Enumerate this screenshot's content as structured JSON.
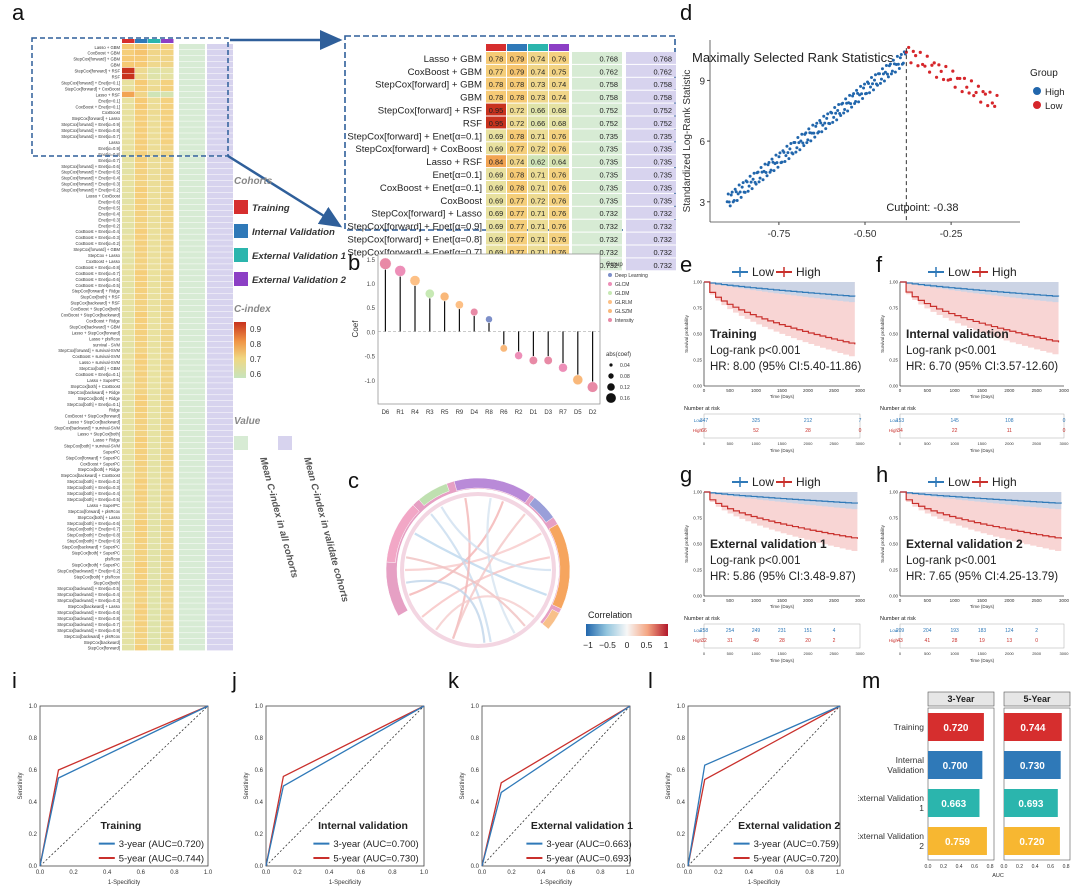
{
  "chart_data": [
    {
      "panel": "a",
      "type": "heatmap",
      "column_colors": [
        "#d62e2e",
        "#2f79b8",
        "#2bb5ad",
        "#8c3fc5"
      ],
      "zoom_rows": [
        {
          "model": "Lasso + GBM",
          "values": [
            0.78,
            0.79,
            0.74,
            0.76
          ],
          "mean_all": 0.768,
          "mean_val": 0.768
        },
        {
          "model": "CoxBoost + GBM",
          "values": [
            0.77,
            0.79,
            0.74,
            0.75
          ],
          "mean_all": 0.762,
          "mean_val": 0.762
        },
        {
          "model": "StepCox[forward] + GBM",
          "values": [
            0.78,
            0.78,
            0.73,
            0.74
          ],
          "mean_all": 0.758,
          "mean_val": 0.758
        },
        {
          "model": "GBM",
          "values": [
            0.78,
            0.78,
            0.73,
            0.74
          ],
          "mean_all": 0.758,
          "mean_val": 0.758
        },
        {
          "model": "StepCox[forward] + RSF",
          "values": [
            0.95,
            0.72,
            0.66,
            0.68
          ],
          "mean_all": 0.752,
          "mean_val": 0.752
        },
        {
          "model": "RSF",
          "values": [
            0.95,
            0.72,
            0.66,
            0.68
          ],
          "mean_all": 0.752,
          "mean_val": 0.752
        },
        {
          "model": "StepCox[forward] + Enet[α=0.1]",
          "values": [
            0.69,
            0.78,
            0.71,
            0.76
          ],
          "mean_all": 0.735,
          "mean_val": 0.735
        },
        {
          "model": "StepCox[forward] + CoxBoost",
          "values": [
            0.69,
            0.77,
            0.72,
            0.76
          ],
          "mean_all": 0.735,
          "mean_val": 0.735
        },
        {
          "model": "Lasso + RSF",
          "values": [
            0.84,
            0.74,
            0.62,
            0.64
          ],
          "mean_all": 0.735,
          "mean_val": 0.735
        },
        {
          "model": "Enet[α=0.1]",
          "values": [
            0.69,
            0.78,
            0.71,
            0.76
          ],
          "mean_all": 0.735,
          "mean_val": 0.735
        },
        {
          "model": "CoxBoost + Enet[α=0.1]",
          "values": [
            0.69,
            0.78,
            0.71,
            0.76
          ],
          "mean_all": 0.735,
          "mean_val": 0.735
        },
        {
          "model": "CoxBoost",
          "values": [
            0.69,
            0.77,
            0.72,
            0.76
          ],
          "mean_all": 0.735,
          "mean_val": 0.735
        },
        {
          "model": "StepCox[forward] + Lasso",
          "values": [
            0.69,
            0.77,
            0.71,
            0.76
          ],
          "mean_all": 0.732,
          "mean_val": 0.732
        },
        {
          "model": "StepCox[forward] + Enet[α=0.9]",
          "values": [
            0.69,
            0.77,
            0.71,
            0.76
          ],
          "mean_all": 0.732,
          "mean_val": 0.732
        },
        {
          "model": "StepCox[forward] + Enet[α=0.8]",
          "values": [
            0.69,
            0.77,
            0.71,
            0.76
          ],
          "mean_all": 0.732,
          "mean_val": 0.732
        },
        {
          "model": "StepCox[forward] + Enet[α=0.7]",
          "values": [
            0.69,
            0.77,
            0.71,
            0.76
          ],
          "mean_all": 0.732,
          "mean_val": 0.732
        },
        {
          "model": "Lasso",
          "values": [
            0.69,
            0.77,
            0.71,
            0.76
          ],
          "mean_all": 0.732,
          "mean_val": 0.732
        }
      ],
      "small_rows": [
        "Enet[α=0.9]",
        "Enet[α=0.8]",
        "Enet[α=0.7]",
        "StepCox[forward] + Enet[α=0.6]",
        "StepCox[forward] + Enet[α=0.5]",
        "StepCox[forward] + Enet[α=0.4]",
        "StepCox[forward] + Enet[α=0.3]",
        "StepCox[forward] + Enet[α=0.2]",
        "Lasso + CoxBoost",
        "Enet[α=0.6]",
        "Enet[α=0.5]",
        "Enet[α=0.4]",
        "Enet[α=0.3]",
        "Enet[α=0.2]",
        "CoxBoost + Enet[α=0.4]",
        "CoxBoost + Enet[α=0.3]",
        "CoxBoost + Enet[α=0.2]",
        "StepCox[forward] + GBM",
        "StepCox + Lasso",
        "CoxBoost + Lasso",
        "CoxBoost + Enet[α=0.8]",
        "CoxBoost + Enet[α=0.7]",
        "CoxBoost + Enet[α=0.6]",
        "CoxBoost + Enet[α=0.5]",
        "StepCox[forward] + Ridge",
        "StepCox[both] + RSF",
        "StepCox[backward] + RSF",
        "CoxBoost + StepCox[both]",
        "CoxBoost + StepCox[backward]",
        "CoxBoost + Ridge",
        "StepCox[backward] + GBM",
        "Lasso + StepCox[forward]",
        "Lasso + plsRcox",
        "survival - SVM",
        "StepCox[forward] + survival-SVM",
        "CoxBoost + survival-SVM",
        "Lasso + survival-SVM",
        "StepCox[both] + GBM",
        "CoxBoost + Enet[α=0.1]",
        "Lasso + SuperPC",
        "StepCox[both] + CoxBoost",
        "StepCox[backward] + Ridge",
        "StepCox[both] + Ridge",
        "StepCox[both] + Enet[α=0.1]",
        "Ridge",
        "CoxBoost + StepCox[forward]",
        "Lasso + StepCox[backward]",
        "StepCox[backward] + survival-SVM",
        "Lasso + StepCox[both]",
        "Lasso + Ridge",
        "StepCox[both] + survival-SVM",
        "SuperPC",
        "StepCox[forward] + SuperPC",
        "CoxBoost + SuperPC",
        "StepCox[both] + Ridge",
        "StepCox[backward] + CoxBoost",
        "StepCox[both] + Enet[α=0.2]",
        "StepCox[both] + Enet[α=0.3]",
        "StepCox[both] + Enet[α=0.4]",
        "StepCox[both] + Enet[α=0.5]",
        "Lasso + SuperPC",
        "StepCox[forward] + plsRcox",
        "StepCox[both] + Lasso",
        "StepCox[both] + Enet[α=0.6]",
        "StepCox[both] + Enet[α=0.7]",
        "StepCox[both] + Enet[α=0.8]",
        "StepCox[both] + Enet[α=0.9]",
        "StepCox[backward] + SuperPC",
        "StepCox[both] + SuperPC",
        "plsRcox",
        "StepCox[both] + SuperPC",
        "StepCox[backward] + Enet[α=0.2]",
        "StepCox[both] + plsRcox",
        "StepCox[both]",
        "StepCox[backward] + Enet[α=0.5]",
        "StepCox[backward] + Enet[α=0.4]",
        "StepCox[backward] + Enet[α=0.3]",
        "StepCox[backward] + Lasso",
        "StepCox[backward] + Enet[α=0.6]",
        "StepCox[backward] + Enet[α=0.8]",
        "StepCox[backward] + Enet[α=0.7]",
        "StepCox[backward] + Enet[α=0.9]",
        "StepCox[backward] + plsRcox",
        "StepCox[backward]",
        "StepCox[forward]"
      ],
      "legend": {
        "cohorts_title": "Cohorts",
        "cohorts": [
          "Training",
          "Internal Validation",
          "External Validation 1",
          "External Validation 2"
        ],
        "cindex_title": "C-index",
        "cindex_ticks": [
          "0.9",
          "0.8",
          "0.7",
          "0.6"
        ],
        "value_title": "Value",
        "value_items": [
          "Mean C-index in all cohorts",
          "Mean C-index in validate cohorts"
        ]
      }
    },
    {
      "panel": "b",
      "type": "scatter",
      "subtype": "lollipop",
      "ylabel": "Coef",
      "categories": [
        "D6",
        "R1",
        "R4",
        "R3",
        "R5",
        "R9",
        "D4",
        "R8",
        "R6",
        "R2",
        "D1",
        "D3",
        "R7",
        "D5",
        "D2"
      ],
      "values": [
        1.4,
        1.25,
        1.05,
        0.78,
        0.72,
        0.55,
        0.4,
        0.25,
        -0.35,
        -0.5,
        -0.6,
        -0.6,
        -0.75,
        -1.0,
        -1.15
      ],
      "groups": [
        "Intensity",
        "GLCM",
        "GLRLM",
        "GLDM",
        "GLSZM",
        "GLRLM",
        "Intensity",
        "Deep Learning",
        "GLSZM",
        "GLCM",
        "Intensity",
        "Intensity",
        "GLCM",
        "GLSZM",
        "Intensity"
      ],
      "ylim": [
        -1.5,
        1.6
      ],
      "yticks": [
        "1.5",
        "1.0",
        "0.5",
        "0.0",
        "-0.5",
        "-1.0"
      ],
      "legend_group_title": "Group",
      "legend_groups": [
        "Deep Learning",
        "GLCM",
        "GLDM",
        "GLRLM",
        "GLSZM",
        "Intensity"
      ],
      "group_colors": [
        "#7d8fc9",
        "#ed8fb8",
        "#c7e9b4",
        "#fdc086",
        "#f9b87a",
        "#e88aa6"
      ],
      "legend_size_title": "abs(coef)",
      "legend_sizes": [
        "0.04",
        "0.08",
        "0.12",
        "0.16"
      ]
    },
    {
      "panel": "c",
      "type": "heatmap",
      "subtype": "chord",
      "legend_title": "Correlation",
      "legend_ticks": [
        "−1",
        "−0.5",
        "0",
        "0.5",
        "1"
      ]
    },
    {
      "panel": "d",
      "type": "scatter",
      "title": "Maximally Selected Rank Statistics",
      "ylabel": "Standardized Log-Rank Statistic",
      "xticks": [
        "-0.75",
        "-0.50",
        "-0.25"
      ],
      "yticks": [
        "3",
        "6",
        "9"
      ],
      "xlim": [
        -0.95,
        -0.05
      ],
      "ylim": [
        2,
        11
      ],
      "cutpoint": -0.38,
      "cutpoint_label": "Cutpoint: -0.38",
      "legend_title": "Group",
      "series": [
        {
          "name": "High",
          "color": "#2166ac"
        },
        {
          "name": "Low",
          "color": "#d6262b"
        }
      ]
    },
    {
      "panel": "efgh",
      "type": "line",
      "subtype": "kaplan-meier",
      "legend": [
        "Low",
        "High"
      ],
      "xlabel": "Time (Days)",
      "ylabel": "Survival probability",
      "risk_title": "Number at risk",
      "xticks": [
        "0",
        "500",
        "1000",
        "1500",
        "2000",
        "2500",
        "3000"
      ],
      "yticks": [
        "0.00",
        "0.25",
        "0.50",
        "0.75",
        "1.00"
      ],
      "plots": [
        {
          "label": "Training",
          "logrank": "Log-rank p<0.001",
          "hr": "HR: 8.00 (95% CI:5.40-11.86)",
          "low_end": 0.86,
          "high_end": 0.4,
          "risk_low": [
            "347",
            "325",
            "212",
            "7"
          ],
          "risk_high": [
            "66",
            "52",
            "28",
            "0"
          ]
        },
        {
          "label": "Internal validation",
          "logrank": "Log-rank p<0.001",
          "hr": "HR: 6.70 (95% CI:3.57-12.60)",
          "low_end": 0.86,
          "high_end": 0.42,
          "risk_low": [
            "153",
            "145",
            "108",
            "0"
          ],
          "risk_high": [
            "34",
            "22",
            "11",
            "0"
          ]
        },
        {
          "label": "External validation 1",
          "logrank": "Log-rank p<0.001",
          "hr": "HR: 5.86 (95% CI:3.48-9.87)",
          "low_end": 0.89,
          "high_end": 0.55,
          "risk_low": [
            "258",
            "254",
            "249",
            "231",
            "151",
            "4"
          ],
          "risk_high": [
            "32",
            "31",
            "49",
            "28",
            "20",
            "2"
          ]
        },
        {
          "label": "External validation 2",
          "logrank": "Log-rank p<0.001",
          "hr": "HR: 7.65 (95% CI:4.25-13.79)",
          "low_end": 0.89,
          "high_end": 0.55,
          "risk_low": [
            "209",
            "204",
            "193",
            "183",
            "124",
            "2"
          ],
          "risk_high": [
            "43",
            "41",
            "28",
            "19",
            "13",
            "0"
          ]
        }
      ]
    },
    {
      "panel": "ijkl",
      "type": "line",
      "subtype": "roc",
      "xlabel": "1-Specificity",
      "ylabel": "Sensitivity",
      "ticks": [
        "0.0",
        "0.2",
        "0.4",
        "0.6",
        "0.8",
        "1.0"
      ],
      "plots": [
        {
          "label": "Training",
          "legend3": "3-year (AUC=0.720)",
          "legend5": "5-year (AUC=0.744)",
          "pt3": [
            0.11,
            0.55
          ],
          "pt5": [
            0.11,
            0.6
          ]
        },
        {
          "label": "Internal validation",
          "legend3": "3-year (AUC=0.700)",
          "legend5": "5-year (AUC=0.730)",
          "pt3": [
            0.11,
            0.5
          ],
          "pt5": [
            0.11,
            0.56
          ]
        },
        {
          "label": "External validation 1",
          "legend3": "3-year (AUC=0.663)",
          "legend5": "5-year (AUC=0.693)",
          "pt3": [
            0.13,
            0.46
          ],
          "pt5": [
            0.13,
            0.52
          ]
        },
        {
          "label": "External validation 2",
          "legend3": "3-year (AUC=0.759)",
          "legend5": "5-year (AUC=0.720)",
          "pt3": [
            0.11,
            0.63
          ],
          "pt5": [
            0.11,
            0.54
          ]
        }
      ]
    },
    {
      "panel": "m",
      "type": "bar",
      "orientation": "horizontal",
      "facets": [
        "3-Year",
        "5-Year"
      ],
      "categories": [
        "Training",
        "Internal Validation",
        "External Validation 1",
        "External Validation 2"
      ],
      "bar_colors": [
        "#d62e2e",
        "#2f79b8",
        "#2bb5ad",
        "#f7b731"
      ],
      "series": [
        {
          "name": "3-Year",
          "values": [
            0.72,
            0.7,
            0.663,
            0.759
          ],
          "labels": [
            "0.720",
            "0.700",
            "0.663",
            "0.759"
          ]
        },
        {
          "name": "5-Year",
          "values": [
            0.744,
            0.73,
            0.693,
            0.72
          ],
          "labels": [
            "0.744",
            "0.730",
            "0.693",
            "0.720"
          ]
        }
      ],
      "xlabel": "AUC",
      "xticks": [
        "0.0",
        "0.2",
        "0.4",
        "0.6",
        "0.8"
      ],
      "xlim": [
        0,
        0.85
      ]
    }
  ],
  "panel_labels": [
    "a",
    "b",
    "c",
    "d",
    "e",
    "f",
    "g",
    "h",
    "i",
    "j",
    "k",
    "l",
    "m"
  ]
}
